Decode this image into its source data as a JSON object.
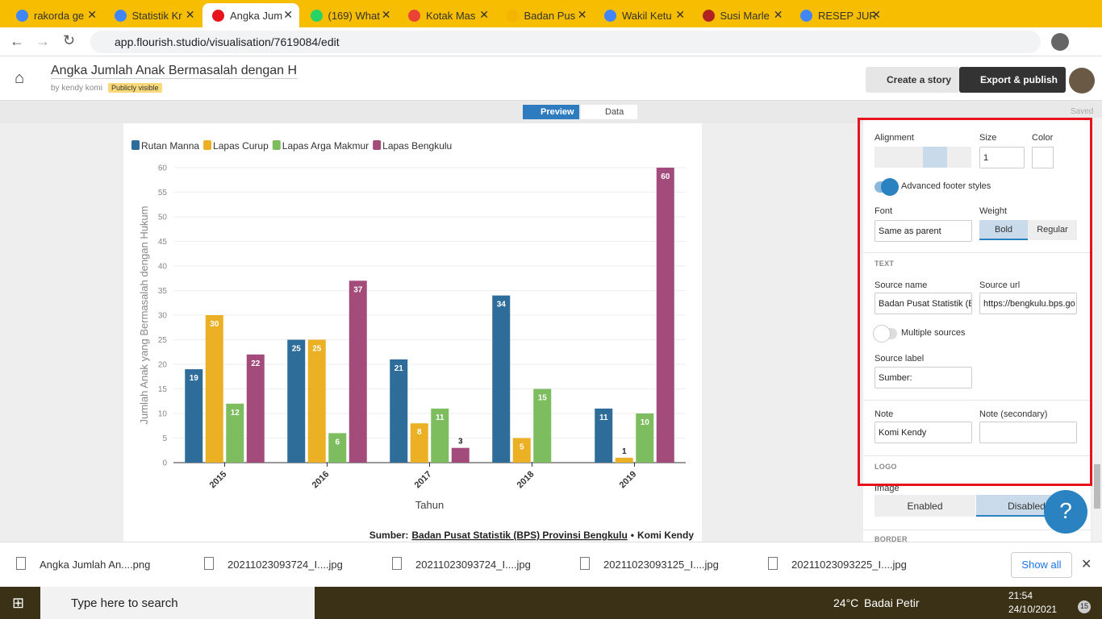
{
  "browser": {
    "tabs": [
      "rakorda ge",
      "Statistik Kr",
      "Angka Jum",
      "(169) What",
      "Kotak Mas",
      "Badan Pus",
      "Wakil Ketu",
      "Susi Marle",
      "RESEP JUR"
    ],
    "url": "app.flourish.studio/visualisation/7619084/edit"
  },
  "header": {
    "title": "Angka Jumlah Anak Bermasalah dengan Huku",
    "byline": "by kendy komi",
    "badge": "Publicly visible",
    "story_button": "Create a story",
    "export_button": "Export & publish"
  },
  "toolbar": {
    "preview": "Preview",
    "data": "Data",
    "status": "Saved"
  },
  "chart_data": {
    "type": "bar",
    "categories": [
      "2015",
      "2016",
      "2017",
      "2018",
      "2019"
    ],
    "series": [
      {
        "name": "Rutan Manna",
        "color": "#2e6c9a",
        "values": [
          19,
          25,
          21,
          34,
          11
        ]
      },
      {
        "name": "Lapas Curup",
        "color": "#ecb025",
        "values": [
          30,
          25,
          8,
          5,
          1
        ]
      },
      {
        "name": "Lapas Arga Makmur",
        "color": "#7dbd5f",
        "values": [
          12,
          6,
          11,
          15,
          10
        ]
      },
      {
        "name": "Lapas Bengkulu",
        "color": "#a34b7b",
        "values": [
          22,
          37,
          3,
          null,
          60
        ]
      }
    ],
    "ylim": [
      0,
      60
    ],
    "yticks": [
      0,
      5,
      10,
      15,
      20,
      25,
      30,
      35,
      40,
      45,
      50,
      55,
      60
    ],
    "grid": true,
    "y_label": "Jumlah Anak yang Bermasalah dengan Hukum",
    "x_label": "Tahun",
    "source_label": "Sumber:",
    "source_name": "Badan Pusat Statistik (BPS) Provinsi Bengkulu",
    "separator": "•",
    "note": "Komi Kendy"
  },
  "panel": {
    "alignment": "Alignment",
    "size": "Size",
    "color": "Color",
    "size_value": "1",
    "advanced": "Advanced footer styles",
    "font": "Font",
    "font_value": "Same as parent",
    "weight": "Weight",
    "bold": "Bold",
    "regular": "Regular",
    "text_section": "TEXT",
    "source_name": "Source name",
    "source_url": "Source url",
    "source_name_value": "Badan Pusat Statistik (B",
    "source_url_value": "https://bengkulu.bps.go",
    "multiple": "Multiple sources",
    "source_label": "Source label",
    "source_label_value": "Sumber:",
    "note": "Note",
    "note_secondary": "Note (secondary)",
    "note_value": "Komi Kendy",
    "logo_section": "LOGO",
    "image": "Image",
    "enabled": "Enabled",
    "disabled": "Disabled",
    "border_section": "BORDER",
    "help": "?"
  },
  "downloads": {
    "files": [
      "Angka Jumlah An....png",
      "20211023093724_I....jpg",
      "20211023093724_I....jpg",
      "20211023093125_I....jpg",
      "20211023093225_I....jpg"
    ],
    "show_all": "Show all"
  },
  "taskbar": {
    "search": "Type here to search",
    "temperature": "24°C",
    "weather": "Badai Petir",
    "time": "21:54",
    "date": "24/10/2021",
    "badge": "15"
  }
}
